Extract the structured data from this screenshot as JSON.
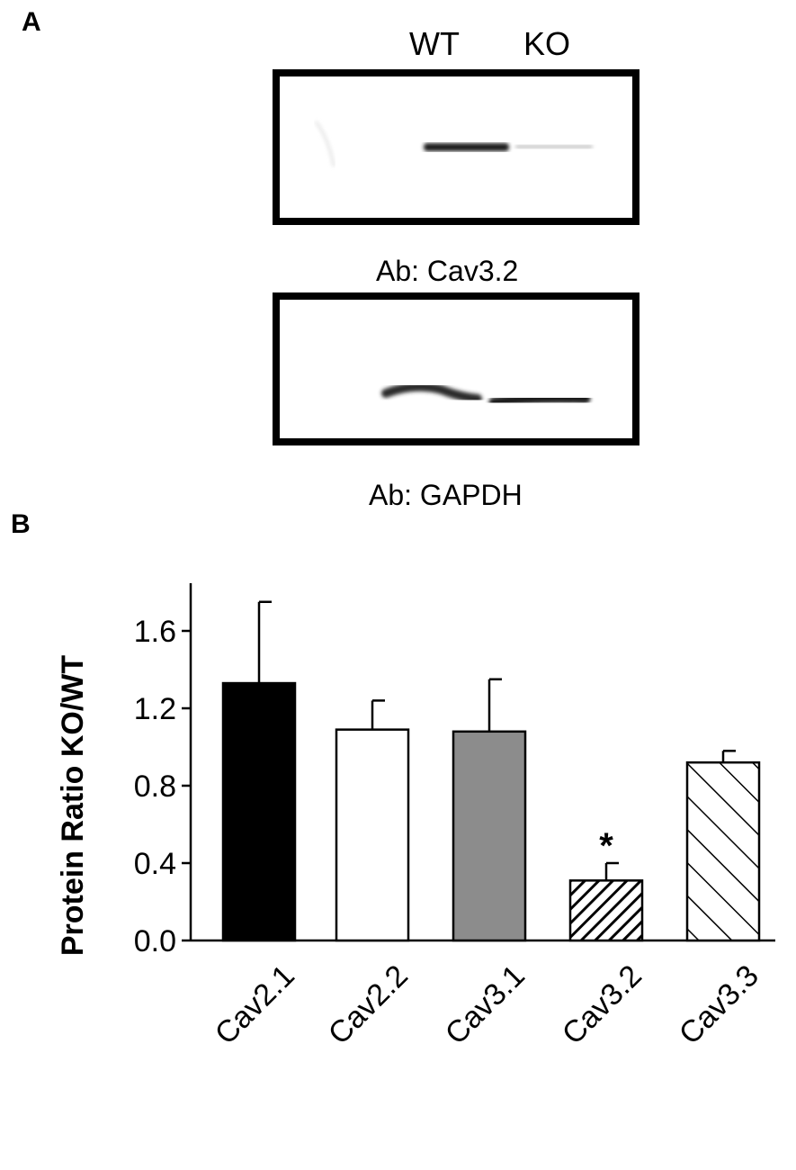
{
  "panel_a": {
    "letter": "A",
    "lane_labels": [
      "WT",
      "KO"
    ],
    "blot1_label": "Ab: Cav3.2",
    "blot2_label": "Ab: GAPDH"
  },
  "panel_b": {
    "letter": "B"
  },
  "chart_data": {
    "type": "bar",
    "categories": [
      "Cav2.1",
      "Cav2.2",
      "Cav3.1",
      "Cav3.2",
      "Cav3.3"
    ],
    "values": [
      1.33,
      1.09,
      1.08,
      0.31,
      0.92
    ],
    "errors": [
      0.42,
      0.15,
      0.27,
      0.09,
      0.06
    ],
    "fills": [
      "black",
      "white",
      "gray",
      "dense-diagonal-hatch",
      "sparse-diagonal-hatch"
    ],
    "colors": {
      "black": "#000000",
      "white": "#ffffff",
      "gray": "#8c8c8c"
    },
    "annotations": [
      {
        "category": "Cav3.2",
        "text": "*"
      }
    ],
    "title": "",
    "xlabel": "",
    "ylabel": "Protein Ratio KO/WT",
    "ylim": [
      0.0,
      1.8
    ],
    "yticks": [
      "0.0",
      "0.4",
      "0.8",
      "1.2",
      "1.6"
    ],
    "grid": false
  }
}
